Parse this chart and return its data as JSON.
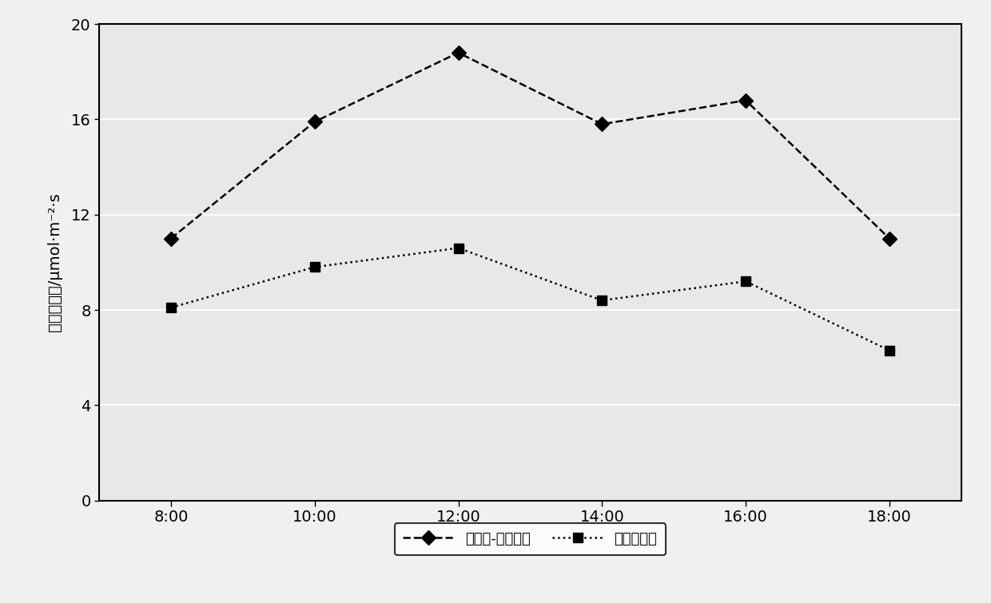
{
  "x_labels": [
    "8:00",
    "10:00",
    "12:00",
    "14:00",
    "16:00",
    "18:00"
  ],
  "x_values": [
    8,
    10,
    12,
    14,
    16,
    18
  ],
  "series1_name": "新树形-化学控梢",
  "series2_name": "自然圆头形",
  "series1_y": [
    11.0,
    15.9,
    18.8,
    15.8,
    16.8,
    11.0
  ],
  "series2_y": [
    8.1,
    9.8,
    10.6,
    8.4,
    9.2,
    6.3
  ],
  "ylabel": "净光合速率/μmol·m⁻²·s",
  "ylim": [
    0,
    20
  ],
  "yticks": [
    0,
    4,
    8,
    12,
    16,
    20
  ],
  "xlim_min": 7,
  "xlim_max": 19,
  "plot_bg_color": "#e8e8e8",
  "fig_bg_color": "#f0f0f0",
  "line_color": "#000000",
  "grid_color": "#ffffff",
  "axis_fontsize": 14,
  "legend_fontsize": 13,
  "linewidth": 1.8,
  "markersize": 9
}
